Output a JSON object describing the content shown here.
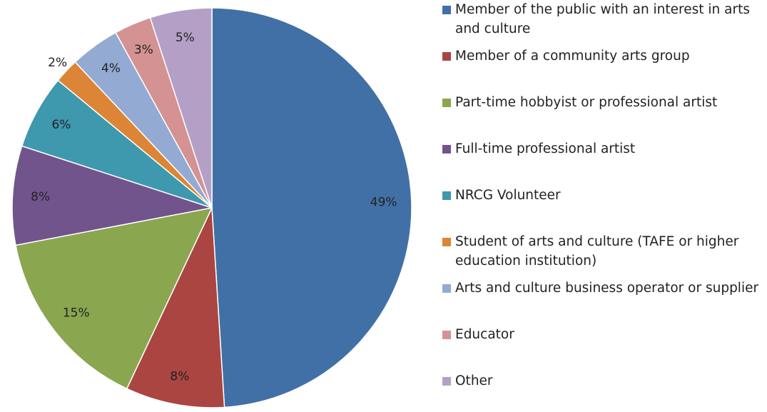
{
  "chart_data": {
    "type": "pie",
    "categories": [
      "Member of the public with an interest in arts and culture",
      "Member of a community arts group",
      "Part-time hobbyist or professional artist",
      "Full-time professional artist",
      "NRCG Volunteer",
      "Student of arts and culture (TAFE or higher education institution)",
      "Arts and culture business operator or supplier",
      "Educator",
      "Other"
    ],
    "values": [
      49,
      8,
      15,
      8,
      6,
      2,
      4,
      3,
      5
    ],
    "value_labels": [
      "49%",
      "8%",
      "15%",
      "8%",
      "6%",
      "2%",
      "4%",
      "3%",
      "5%"
    ],
    "colors": [
      "#4170a6",
      "#ab4542",
      "#8aa64f",
      "#71548c",
      "#3e98ae",
      "#dc8536",
      "#93aad3",
      "#d49292",
      "#b4a0c7"
    ],
    "legend": "right"
  }
}
